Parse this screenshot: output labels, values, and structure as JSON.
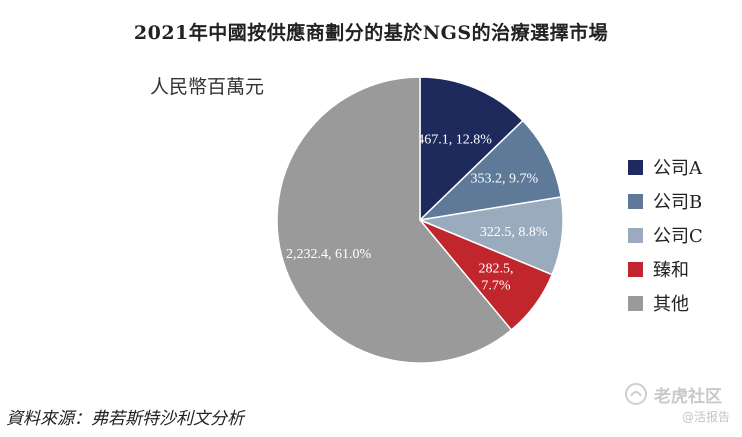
{
  "chart_data": {
    "type": "pie",
    "title": "2021年中國按供應商劃分的基於NGS的治療選擇市場",
    "unit_label": "人民幣百萬元",
    "slices": [
      {
        "name": "公司A",
        "value": 467.1,
        "percent": 12.8,
        "label": "467.1, 12.8%",
        "color": "#1f2a5c"
      },
      {
        "name": "公司B",
        "value": 353.2,
        "percent": 9.7,
        "label": "353.2, 9.7%",
        "color": "#5f7a99"
      },
      {
        "name": "公司C",
        "value": 322.5,
        "percent": 8.8,
        "label": "322.5, 8.8%",
        "color": "#9aabbd"
      },
      {
        "name": "臻和",
        "value": 282.5,
        "percent": 7.7,
        "label": "282.5,\n7.7%",
        "color": "#c0262c"
      },
      {
        "name": "其他",
        "value": 2232.4,
        "percent": 61.0,
        "label": "2,232.4, 61.0%",
        "color": "#9a9a9a"
      }
    ],
    "legend_position": "right"
  },
  "source": "資料來源：弗若斯特沙利文分析",
  "watermark": {
    "main": "老虎社区",
    "sub": "@活报告"
  },
  "label_color": "#ffffff"
}
